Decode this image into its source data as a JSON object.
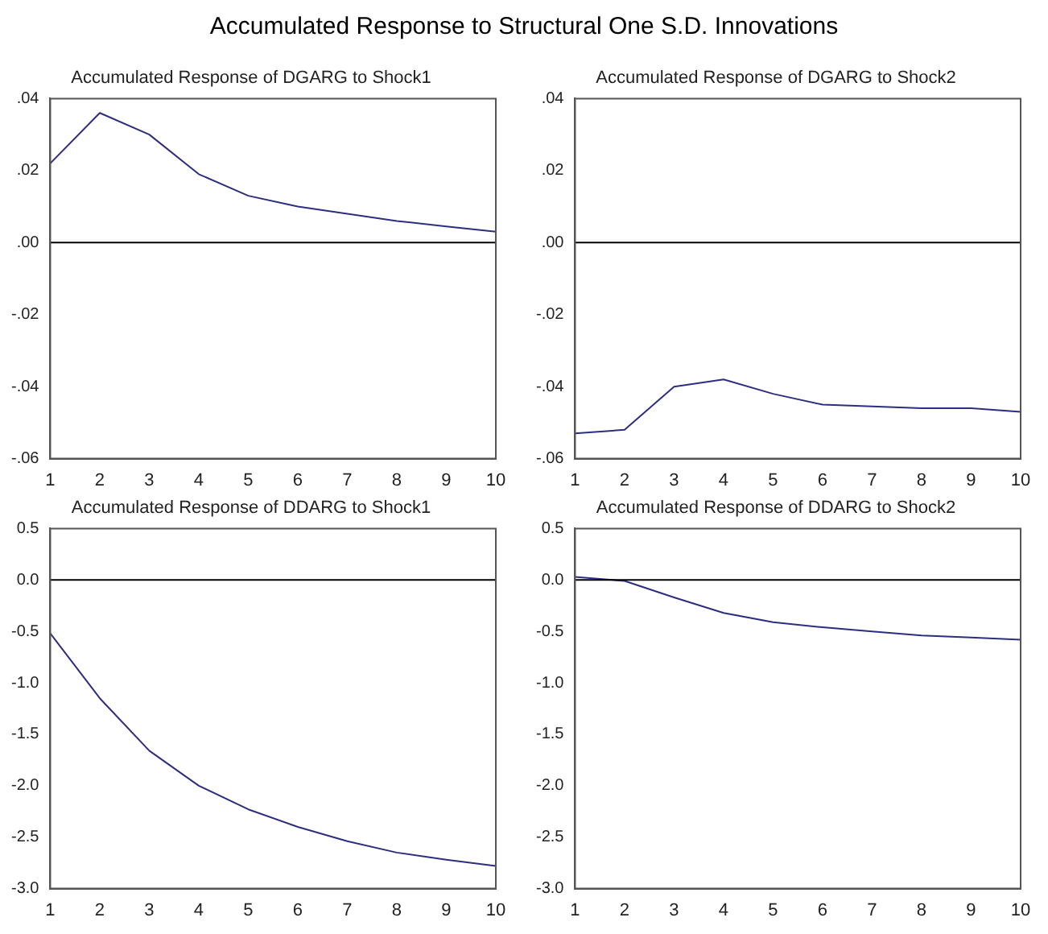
{
  "chart_data": [
    {
      "type": "other",
      "title": "Accumulated Response to Structural One S.D. Innovations"
    },
    {
      "type": "line",
      "title": "Accumulated Response of DGARG to Shock1",
      "categories": [
        "1",
        "2",
        "3",
        "4",
        "5",
        "6",
        "7",
        "8",
        "9",
        "10"
      ],
      "series": [
        {
          "color": "#2e2e80",
          "values": [
            0.022,
            0.036,
            0.03,
            0.019,
            0.013,
            0.01,
            0.008,
            0.006,
            0.0045,
            0.003
          ]
        }
      ],
      "ylim": [
        -0.06,
        0.04
      ],
      "yticks": [
        {
          "value": -0.06,
          "label": "-.06"
        },
        {
          "value": -0.04,
          "label": "-.04"
        },
        {
          "value": -0.02,
          "label": "-.02"
        },
        {
          "value": 0,
          "label": ".00"
        },
        {
          "value": 0.02,
          "label": ".02"
        },
        {
          "value": 0.04,
          "label": ".04"
        }
      ],
      "ref_lines": [
        {
          "axis": "y",
          "value": 0,
          "color": "#000000"
        }
      ],
      "grid": false,
      "legend": false,
      "marker": "none",
      "line_style": "solid"
    },
    {
      "type": "line",
      "title": "Accumulated Response of DGARG to Shock2",
      "categories": [
        "1",
        "2",
        "3",
        "4",
        "5",
        "6",
        "7",
        "8",
        "9",
        "10"
      ],
      "series": [
        {
          "color": "#2e2e80",
          "values": [
            -0.053,
            -0.052,
            -0.04,
            -0.038,
            -0.042,
            -0.045,
            -0.0455,
            -0.046,
            -0.046,
            -0.047
          ]
        }
      ],
      "ylim": [
        -0.06,
        0.04
      ],
      "yticks": [
        {
          "value": -0.06,
          "label": "-.06"
        },
        {
          "value": -0.04,
          "label": "-.04"
        },
        {
          "value": -0.02,
          "label": "-.02"
        },
        {
          "value": 0,
          "label": ".00"
        },
        {
          "value": 0.02,
          "label": ".02"
        },
        {
          "value": 0.04,
          "label": ".04"
        }
      ],
      "ref_lines": [
        {
          "axis": "y",
          "value": 0,
          "color": "#000000"
        }
      ],
      "grid": false,
      "legend": false,
      "marker": "none",
      "line_style": "solid"
    },
    {
      "type": "line",
      "title": "Accumulated Response of DDARG to Shock1",
      "categories": [
        "1",
        "2",
        "3",
        "4",
        "5",
        "6",
        "7",
        "8",
        "9",
        "10"
      ],
      "series": [
        {
          "color": "#2e2e80",
          "values": [
            -0.52,
            -1.15,
            -1.66,
            -2.0,
            -2.23,
            -2.4,
            -2.54,
            -2.65,
            -2.72,
            -2.78
          ]
        }
      ],
      "ylim": [
        -3,
        0.5
      ],
      "yticks": [
        {
          "value": -3,
          "label": "-3.0"
        },
        {
          "value": -2.5,
          "label": "-2.5"
        },
        {
          "value": -2,
          "label": "-2.0"
        },
        {
          "value": -1.5,
          "label": "-1.5"
        },
        {
          "value": -1,
          "label": "-1.0"
        },
        {
          "value": -0.5,
          "label": "-0.5"
        },
        {
          "value": 0,
          "label": "0.0"
        },
        {
          "value": 0.5,
          "label": "0.5"
        }
      ],
      "ref_lines": [
        {
          "axis": "y",
          "value": 0,
          "color": "#000000"
        }
      ],
      "grid": false,
      "legend": false,
      "marker": "none",
      "line_style": "solid"
    },
    {
      "type": "line",
      "title": "Accumulated Response of DDARG to Shock2",
      "categories": [
        "1",
        "2",
        "3",
        "4",
        "5",
        "6",
        "7",
        "8",
        "9",
        "10"
      ],
      "series": [
        {
          "color": "#2e2e80",
          "values": [
            0.03,
            -0.01,
            -0.17,
            -0.32,
            -0.41,
            -0.46,
            -0.5,
            -0.54,
            -0.56,
            -0.58
          ]
        }
      ],
      "ylim": [
        -3,
        0.5
      ],
      "yticks": [
        {
          "value": -3,
          "label": "-3.0"
        },
        {
          "value": -2.5,
          "label": "-2.5"
        },
        {
          "value": -2,
          "label": "-2.0"
        },
        {
          "value": -1.5,
          "label": "-1.5"
        },
        {
          "value": -1,
          "label": "-1.0"
        },
        {
          "value": -0.5,
          "label": "-0.5"
        },
        {
          "value": 0,
          "label": "0.0"
        },
        {
          "value": 0.5,
          "label": "0.5"
        }
      ],
      "ref_lines": [
        {
          "axis": "y",
          "value": 0,
          "color": "#000000"
        }
      ],
      "grid": false,
      "legend": false,
      "marker": "none",
      "line_style": "solid"
    }
  ]
}
